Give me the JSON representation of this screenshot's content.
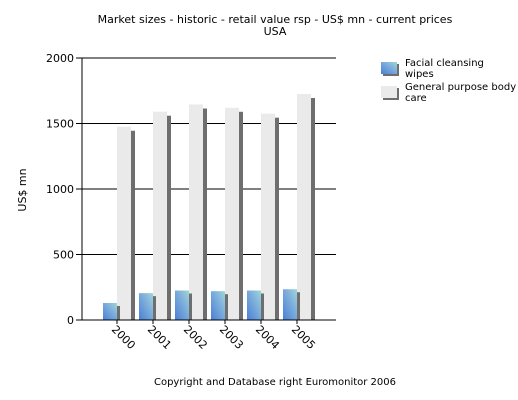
{
  "chart_data": {
    "type": "bar",
    "title": "Market sizes  - historic - retail value rsp  - US$ mn  - current prices",
    "subtitle": "USA",
    "ylabel": "US$ mn",
    "xlabel": "",
    "categories": [
      "2000",
      "2001",
      "2002",
      "2003",
      "2004",
      "2005"
    ],
    "series": [
      {
        "name": "Facial cleansing wipes",
        "values": [
          130,
          205,
          225,
          220,
          225,
          235
        ],
        "color": "#6f9fd8"
      },
      {
        "name": "General purpose body care",
        "values": [
          1475,
          1590,
          1645,
          1620,
          1575,
          1725
        ],
        "color": "#eaeaea"
      }
    ],
    "yticks": [
      0,
      500,
      1000,
      1500,
      2000
    ],
    "ylim": [
      0,
      2000
    ],
    "grid": true,
    "legend_position": "top-right",
    "style": "3d-bars"
  },
  "footer": "Copyright and Database right Euromonitor 2006"
}
